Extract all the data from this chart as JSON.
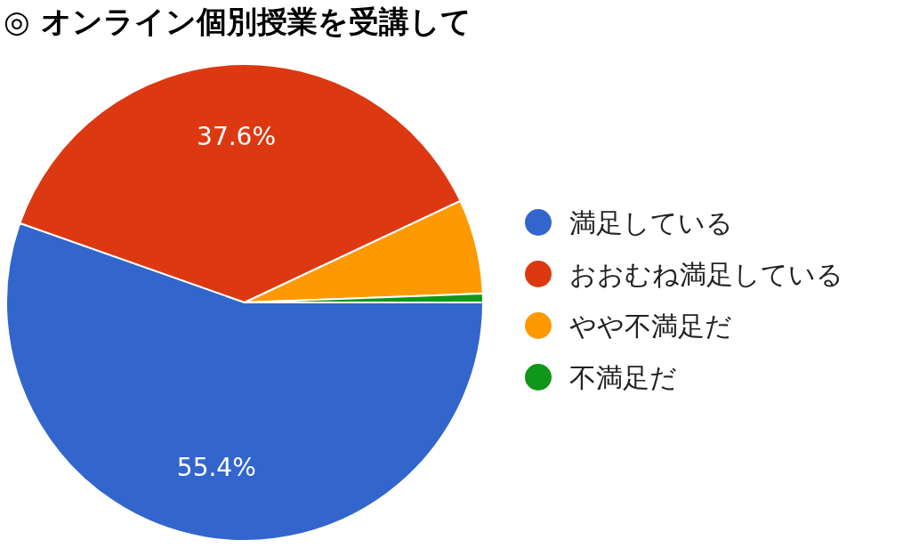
{
  "chart_data": {
    "type": "pie",
    "title": "◎ オンライン個別授業を受講して",
    "categories": [
      "満足している",
      "おおむね満足している",
      "やや不満足だ",
      "不満足だ"
    ],
    "values": [
      55.4,
      37.6,
      6.4,
      0.6
    ],
    "colors": [
      "#3366cc",
      "#dc3912",
      "#ff9900",
      "#109618"
    ],
    "value_labels": [
      "55.4%",
      "37.6%",
      null,
      null
    ],
    "legend": "right"
  }
}
